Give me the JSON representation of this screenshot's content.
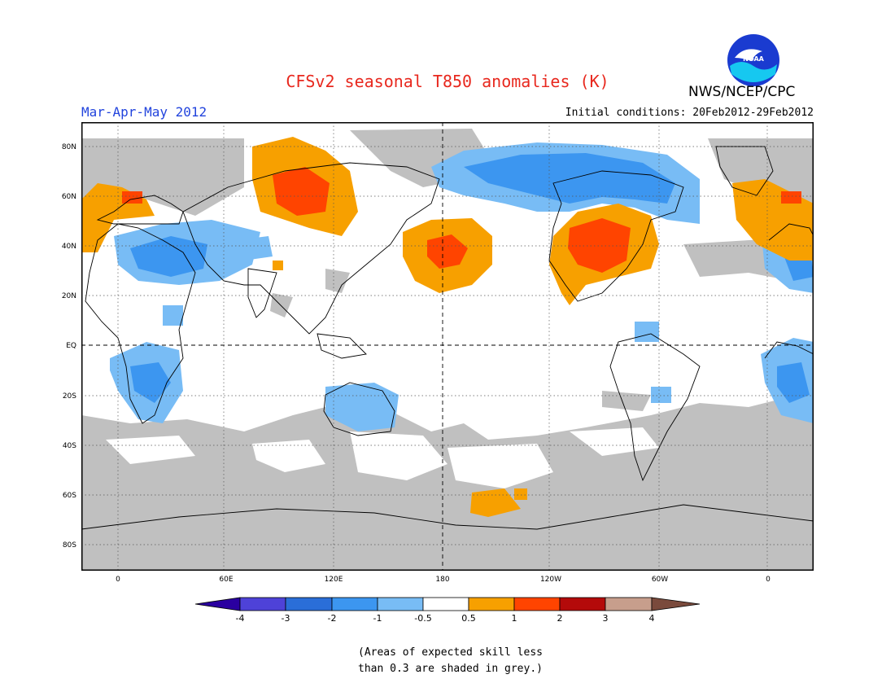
{
  "header": {
    "title": "CFSv2 seasonal T850 anomalies (K)",
    "org": "NWS/NCEP/CPC",
    "season": "Mar-Apr-May 2012",
    "initial_conditions": "Initial conditions: 20Feb2012-29Feb2012",
    "logo_text": "NOAA"
  },
  "map": {
    "lat_labels": [
      "80N",
      "60N",
      "40N",
      "20N",
      "EQ",
      "20S",
      "40S",
      "60S",
      "80S"
    ],
    "lon_labels": [
      "0",
      "60E",
      "120E",
      "180",
      "120W",
      "60W",
      "0"
    ],
    "grid": true
  },
  "colorbar": {
    "tick_labels": [
      "-4",
      "-3",
      "-2",
      "-1",
      "-0.5",
      "0.5",
      "1",
      "2",
      "3",
      "4"
    ],
    "colors": [
      "#2a00a0",
      "#4e42d8",
      "#2a6ed8",
      "#3c96f0",
      "#78bcf5",
      "#ffffff",
      "#f7a000",
      "#ff4400",
      "#b40a0a",
      "#c79e8c",
      "#7a4a3c"
    ]
  },
  "footnote": {
    "line1": "(Areas of expected skill less",
    "line2": "than 0.3 are shaded in grey.)"
  }
}
